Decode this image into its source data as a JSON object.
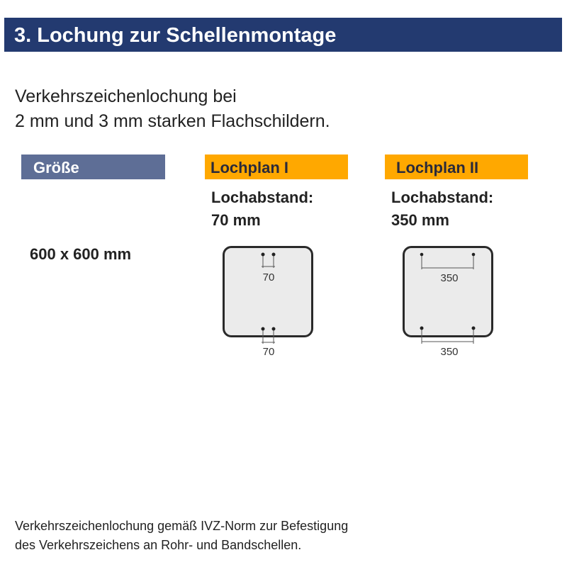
{
  "header": {
    "title": "3. Lochung zur Schellenmontage",
    "color": "#233a70"
  },
  "intro": {
    "line1": "Verkehrszeichenlochung bei",
    "line2": "2 mm und 3 mm starken Flachschildern."
  },
  "columns": {
    "size": {
      "label": "Größe",
      "value": "600 x 600 mm",
      "color": "#5e6e96"
    },
    "plan1": {
      "label": "Lochplan I",
      "spacing_label": "Lochabstand:",
      "spacing_value": "70 mm",
      "dim_top": "70",
      "dim_bottom": "70",
      "color": "#ffa800"
    },
    "plan2": {
      "label": "Lochplan II",
      "spacing_label": "Lochabstand:",
      "spacing_value": "350 mm",
      "dim_top": "350",
      "dim_bottom": "350",
      "color": "#ffa800"
    }
  },
  "footer": {
    "line1": "Verkehrszeichenlochung gemäß IVZ-Norm zur Befestigung",
    "line2": "des Verkehrszeichens an Rohr- und Bandschellen."
  }
}
